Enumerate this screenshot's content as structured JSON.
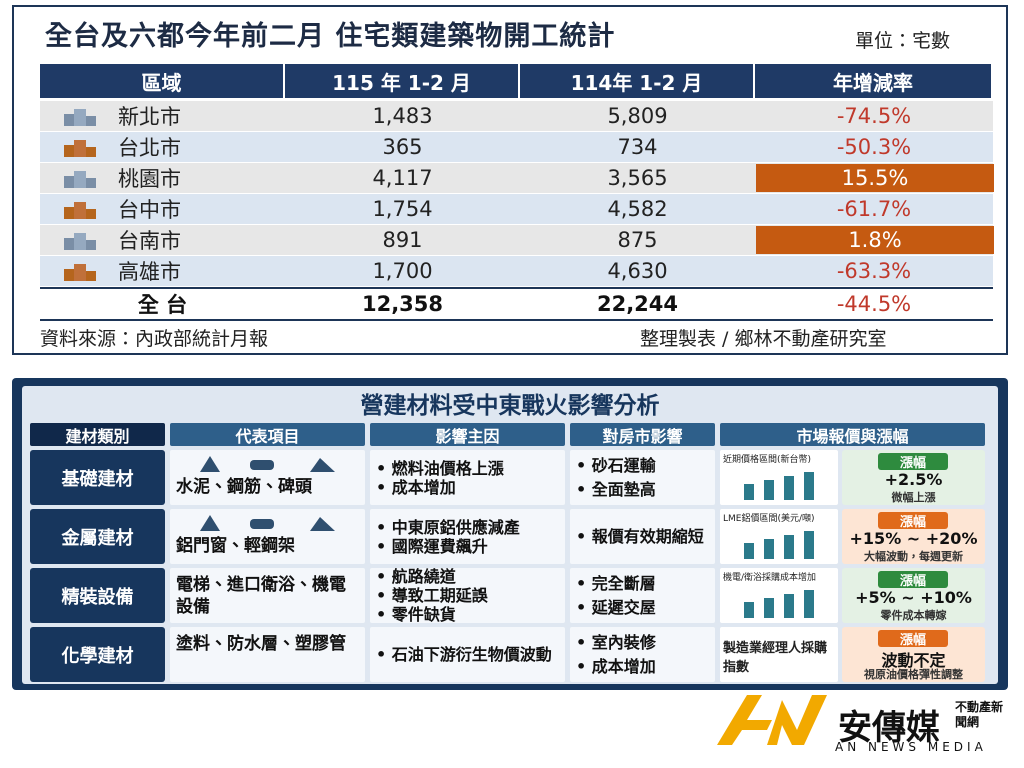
{
  "table1": {
    "title": "全台及六都今年前二月 住宅類建築物開工統計",
    "unit": "單位：宅數",
    "header": [
      "區域",
      "115 年 1-2 月",
      "114年 1-2 月",
      "年增減率"
    ],
    "rows": [
      [
        "新北市",
        "1,483",
        "5,809",
        "-74.5%"
      ],
      [
        "台北市",
        "365",
        "734",
        "-50.3%"
      ],
      [
        "桃園市",
        "4,117",
        "3,565",
        "15.5%"
      ],
      [
        "台中市",
        "1,754",
        "4,582",
        "-61.7%"
      ],
      [
        "台南市",
        "891",
        "875",
        "1.8%"
      ],
      [
        "高雄市",
        "1,700",
        "4,630",
        "-63.3%"
      ]
    ],
    "total": [
      "全 台",
      "12,358",
      "22,244",
      "-44.5%"
    ],
    "source": "資料來源：內政部統計月報",
    "credit": "整理製表 / 鄉林不動產研究室"
  },
  "table2": {
    "title": "營建材料受中東戰火影響分析",
    "header": [
      "建材類別",
      "代表項目",
      "影響主因",
      "對房市影響",
      "市場報價與漲幅"
    ],
    "rows": [
      {
        "category": "基礎建材",
        "items": "水泥、鋼筋、碑頭",
        "causes": [
          "燃料油價格上漲",
          "成本增加"
        ],
        "effects": [
          "砂石運輸",
          "全面墊高"
        ],
        "chart_title": "近期價格區間(新台幣)",
        "tag": "漲幅",
        "change": "+2.5%",
        "note": "微幅上漲"
      },
      {
        "category": "金屬建材",
        "items": "鋁門窗、輕鋼架",
        "causes": [
          "中東原鋁供應減產",
          "國際運費飆升"
        ],
        "effects": [
          "報價有效期縮短"
        ],
        "chart_title": "LME鋁價區間(美元/噸)",
        "tag": "漲幅",
        "change": "+15% ~ +20%",
        "note": "大幅波動，每週更新"
      },
      {
        "category": "精裝設備",
        "items": "電梯、進口衛浴、機電設備",
        "causes": [
          "航路繞道",
          "導致工期延誤",
          "零件缺貨"
        ],
        "effects": [
          "完全斷層",
          "延遲交屋"
        ],
        "chart_title": "機電/衛浴採購成本增加",
        "tag": "漲幅",
        "change": "+5% ~ +10%",
        "note": "零件成本轉嫁"
      },
      {
        "category": "化學建材",
        "items": "塗料、防水層、塑膠管",
        "causes": [
          "石油下游衍生物價波動"
        ],
        "effects": [
          "室內裝修",
          "成本增加"
        ],
        "chart_title": "製造業經理人採購指數",
        "tag": "漲幅",
        "change": "波動不定",
        "note": "視原油價格彈性調整"
      }
    ]
  },
  "logo": {
    "name": "安傳媒",
    "sub": "不動產新聞網",
    "english": "AN NEWS MEDIA"
  }
}
